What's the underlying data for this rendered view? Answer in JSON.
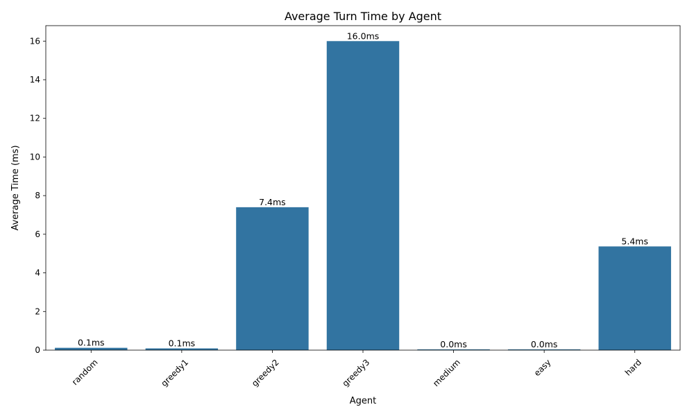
{
  "chart_data": {
    "type": "bar",
    "title": "Average Turn Time by Agent",
    "xlabel": "Agent",
    "ylabel": "Average Time (ms)",
    "categories": [
      "random",
      "greedy1",
      "greedy2",
      "greedy3",
      "medium",
      "easy",
      "hard"
    ],
    "values": [
      0.12,
      0.09,
      7.4,
      16.0,
      0.04,
      0.04,
      5.37
    ],
    "value_labels": [
      "0.1ms",
      "0.1ms",
      "7.4ms",
      "16.0ms",
      "0.0ms",
      "0.0ms",
      "5.4ms"
    ],
    "ylim": [
      0,
      16.8
    ],
    "yticks": [
      0,
      2,
      4,
      6,
      8,
      10,
      12,
      14,
      16
    ],
    "bar_color": "#3274a1",
    "grid": false,
    "xtick_rotation": 45
  }
}
